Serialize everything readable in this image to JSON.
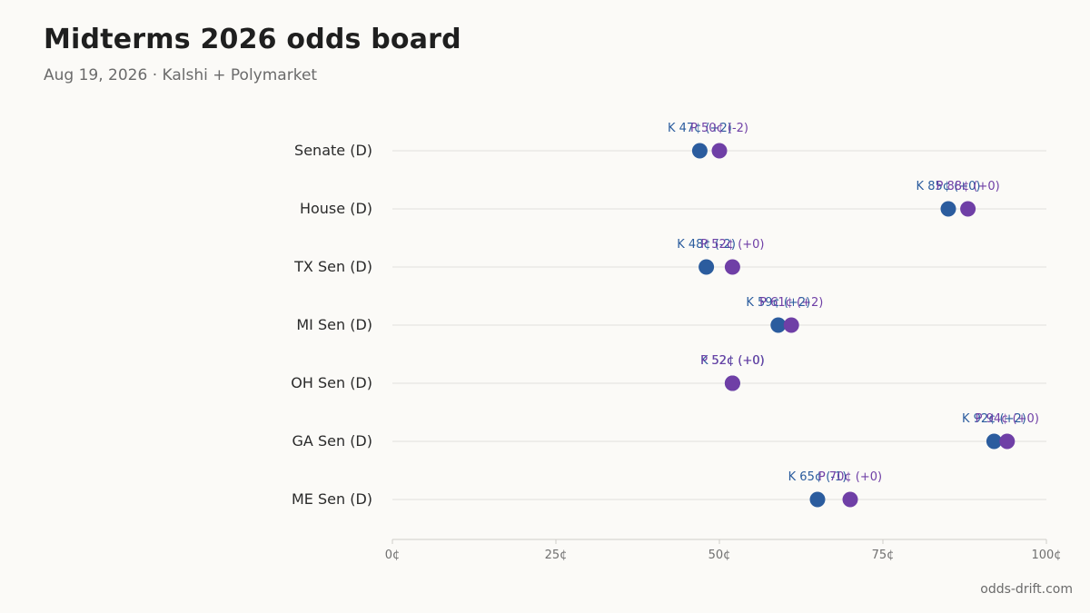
{
  "header": {
    "title": "Midterms 2026 odds board",
    "subtitle": "Aug 19, 2026 · Kalshi + Polymarket"
  },
  "footer": {
    "source": "odds-drift.com"
  },
  "colors": {
    "kalshi": "#2b5c9e",
    "polymarket": "#6f3fa6",
    "grid": "#e2e0dc",
    "axis": "#cfcdc8"
  },
  "chart_data": {
    "type": "scatter",
    "categories": [
      "Senate (D)",
      "House (D)",
      "TX Sen (D)",
      "MI Sen (D)",
      "OH Sen (D)",
      "GA Sen (D)",
      "ME Sen (D)"
    ],
    "xlim": [
      0,
      100
    ],
    "x_ticks": [
      0,
      25,
      50,
      75,
      100
    ],
    "x_tick_labels": [
      "0¢",
      "25¢",
      "50¢",
      "75¢",
      "100¢"
    ],
    "series": [
      {
        "name": "K",
        "color": "#2b5c9e",
        "values": [
          47,
          85,
          48,
          59,
          52,
          92,
          65
        ],
        "labels": [
          "K 47¢ (+2)",
          "K 85¢ (+0)",
          "K 48¢ (-2)",
          "K 59¢ (+2)",
          "K 52¢ (+0)",
          "K 92¢ (+2)",
          "K 65¢ (-1)"
        ]
      },
      {
        "name": "P",
        "color": "#6f3fa6",
        "values": [
          50,
          88,
          52,
          61,
          52,
          94,
          70
        ],
        "labels": [
          "P 50¢ (-2)",
          "P 88¢ (+0)",
          "P 52¢ (+0)",
          "P 61¢ (+2)",
          "P 52¢ (+0)",
          "P 94¢ (+0)",
          "P 70¢ (+0)"
        ]
      }
    ],
    "grid": true,
    "legend": "none"
  }
}
